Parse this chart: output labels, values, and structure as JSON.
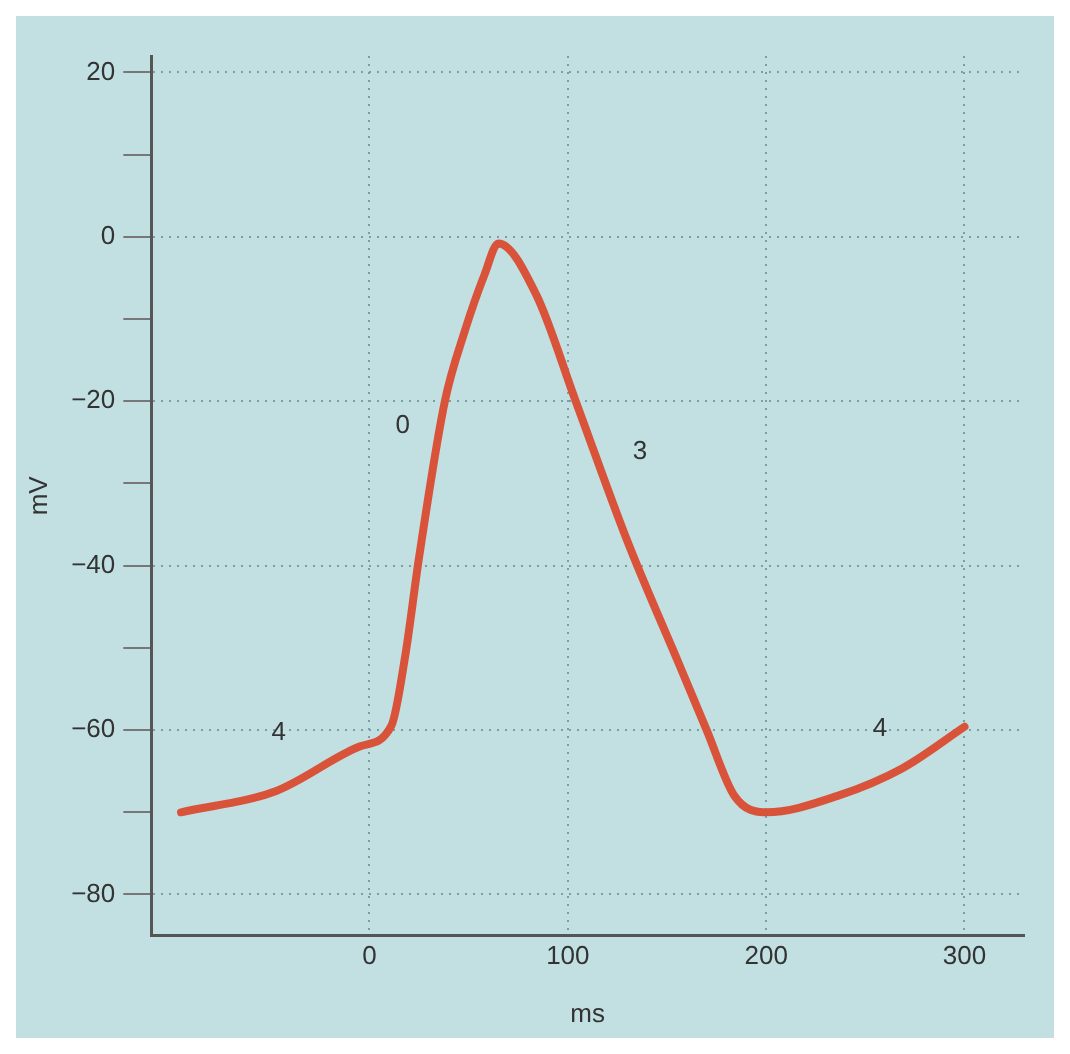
{
  "chart_data": {
    "type": "line",
    "xlabel": "ms",
    "ylabel": "mV",
    "x": [
      -95,
      -47,
      -5,
      11,
      18,
      25,
      38,
      48,
      58,
      65,
      84,
      104,
      130,
      157,
      170,
      184,
      200,
      236,
      269,
      300
    ],
    "series": [
      {
        "color": "#d9533a",
        "values": [
          -70,
          -67.4,
          -62,
          -59.5,
          -51,
          -39,
          -20,
          -11.5,
          -4.6,
          -0.8,
          -7,
          -20,
          -37,
          -52.5,
          -60,
          -68,
          -70,
          -68,
          -64.6,
          -59.6
        ]
      }
    ],
    "xlim": [
      -110,
      330
    ],
    "ylim": [
      -85,
      22
    ],
    "xticks": [
      0,
      100,
      200,
      300
    ],
    "yticks": [
      20,
      {
        "value": 10,
        "label": null
      },
      0,
      {
        "value": -10,
        "label": null
      },
      -20,
      {
        "value": -30,
        "label": null
      },
      -40,
      {
        "value": -50,
        "label": null
      },
      -60,
      {
        "value": -70,
        "label": null
      },
      -80
    ],
    "grid": true,
    "marker": "none",
    "line_style": "solid",
    "annotations": [
      "4",
      "0",
      "3",
      "4"
    ]
  }
}
